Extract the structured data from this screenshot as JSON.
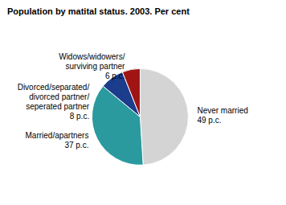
{
  "chart_data": {
    "type": "pie",
    "title": "Population by matital status. 2003. Per cent",
    "categories": [
      "Never married",
      "Married/apartners",
      "Divorced/separated/divorced partner/seperated partner",
      "Widows/widowers/surviving partner"
    ],
    "values": [
      49,
      37,
      8,
      6
    ],
    "value_labels": [
      "49 p.c.",
      "37 p.c.",
      "8 p.c.",
      "6 p.c."
    ],
    "colors": [
      "#d4d4d4",
      "#2a9a9e",
      "#1c3c8c",
      "#a01414"
    ],
    "data_labels": true
  }
}
